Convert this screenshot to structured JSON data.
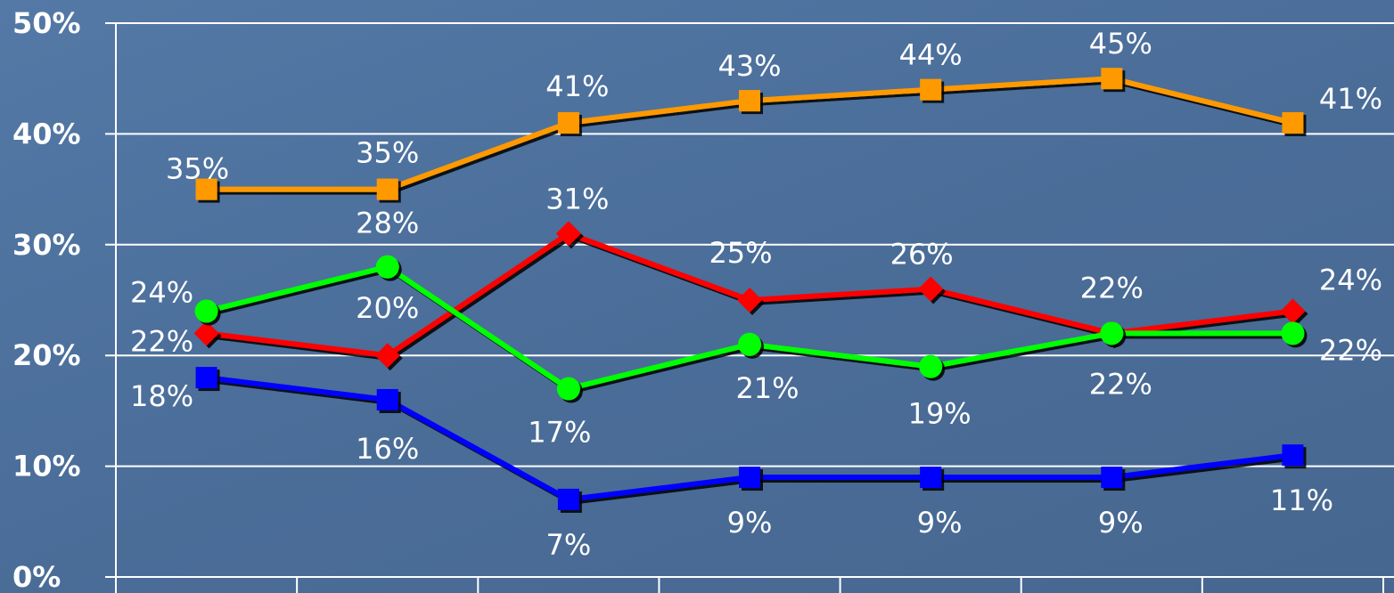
{
  "chart_data": {
    "type": "line",
    "categories": [
      "",
      "",
      "",
      "",
      "",
      "",
      ""
    ],
    "ylim": [
      0,
      50
    ],
    "y_ticks": [
      0,
      10,
      20,
      30,
      40,
      50
    ],
    "y_tick_labels": [
      "0%",
      "10%",
      "20%",
      "30%",
      "40%",
      "50%"
    ],
    "grid": true,
    "legend": "none",
    "series": [
      {
        "color": "#ff9900",
        "marker": "square",
        "values": [
          35,
          35,
          41,
          43,
          44,
          45,
          41
        ],
        "labels": [
          "35%",
          "35%",
          "41%",
          "43%",
          "44%",
          "45%",
          "41%"
        ]
      },
      {
        "color": "#ff0000",
        "marker": "diamond",
        "values": [
          22,
          20,
          31,
          25,
          26,
          22,
          24
        ],
        "labels": [
          "22%",
          "20%",
          "31%",
          "25%",
          "26%",
          "22%",
          "24%"
        ]
      },
      {
        "color": "#00ff00",
        "marker": "circle",
        "values": [
          24,
          28,
          17,
          21,
          19,
          22,
          22
        ],
        "labels": [
          "24%",
          "28%",
          "17%",
          "21%",
          "19%",
          "22%",
          "22%"
        ]
      },
      {
        "color": "#0000ff",
        "marker": "square",
        "values": [
          18,
          16,
          7,
          9,
          9,
          9,
          11
        ],
        "labels": [
          "18%",
          "16%",
          "7%",
          "9%",
          "9%",
          "9%",
          "11%"
        ]
      }
    ]
  },
  "colors": {
    "background": "#4d6f99",
    "grid": "#ffffff",
    "text": "#ffffff"
  }
}
